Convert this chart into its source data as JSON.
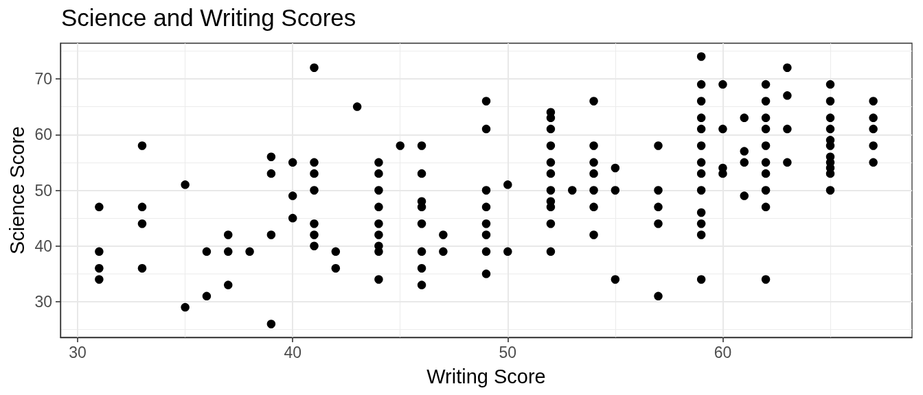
{
  "chart_data": {
    "type": "scatter",
    "title": "Science and Writing Scores",
    "xlabel": "Writing Score",
    "ylabel": "Science Score",
    "series": [
      {
        "color": "#000000",
        "x": [
          31,
          31,
          31,
          31,
          33,
          33,
          33,
          33,
          35,
          35,
          36,
          36,
          37,
          37,
          37,
          38,
          39,
          39,
          39,
          39,
          40,
          40,
          40,
          41,
          41,
          41,
          41,
          41,
          41,
          41,
          42,
          42,
          43,
          44,
          44,
          44,
          44,
          44,
          44,
          44,
          44,
          44,
          45,
          46,
          46,
          46,
          46,
          46,
          46,
          46,
          46,
          47,
          47,
          49,
          49,
          49,
          49,
          49,
          49,
          49,
          49,
          50,
          50,
          52,
          52,
          52,
          52,
          52,
          52,
          52,
          52,
          52,
          52,
          52,
          53,
          54,
          54,
          54,
          54,
          54,
          54,
          54,
          55,
          55,
          55,
          57,
          57,
          57,
          57,
          57,
          59,
          59,
          59,
          59,
          59,
          59,
          59,
          59,
          59,
          59,
          59,
          59,
          59,
          60,
          60,
          60,
          60,
          61,
          61,
          61,
          61,
          62,
          62,
          62,
          62,
          62,
          62,
          62,
          62,
          62,
          62,
          63,
          63,
          63,
          63,
          65,
          65,
          65,
          65,
          65,
          65,
          65,
          65,
          65,
          65,
          65,
          67,
          67,
          67,
          67,
          67
        ],
        "values": [
          47,
          39,
          36,
          34,
          58,
          47,
          44,
          36,
          51,
          29,
          39,
          31,
          42,
          39,
          33,
          39,
          56,
          53,
          42,
          26,
          55,
          49,
          45,
          72,
          55,
          53,
          50,
          44,
          42,
          40,
          39,
          36,
          65,
          55,
          53,
          50,
          47,
          44,
          42,
          40,
          39,
          34,
          58,
          58,
          53,
          48,
          47,
          44,
          39,
          36,
          33,
          42,
          39,
          66,
          61,
          50,
          47,
          44,
          42,
          39,
          35,
          51,
          39,
          64,
          63,
          61,
          58,
          55,
          53,
          50,
          48,
          47,
          44,
          39,
          50,
          66,
          58,
          55,
          53,
          50,
          47,
          42,
          54,
          50,
          34,
          58,
          50,
          47,
          44,
          31,
          74,
          69,
          66,
          63,
          61,
          58,
          55,
          53,
          50,
          46,
          44,
          42,
          34,
          69,
          61,
          54,
          53,
          63,
          57,
          55,
          49,
          69,
          66,
          63,
          61,
          58,
          55,
          53,
          50,
          47,
          34,
          72,
          67,
          61,
          55,
          69,
          66,
          63,
          61,
          59,
          58,
          56,
          55,
          54,
          53,
          50,
          66,
          63,
          61,
          58,
          55
        ]
      }
    ],
    "xlim": [
      29.2,
      68.8
    ],
    "ylim": [
      23.6,
      76.4
    ],
    "xticks": [
      30,
      40,
      50,
      60
    ],
    "yticks": [
      30,
      40,
      50,
      60,
      70
    ],
    "grid": true,
    "marker": "circle"
  }
}
